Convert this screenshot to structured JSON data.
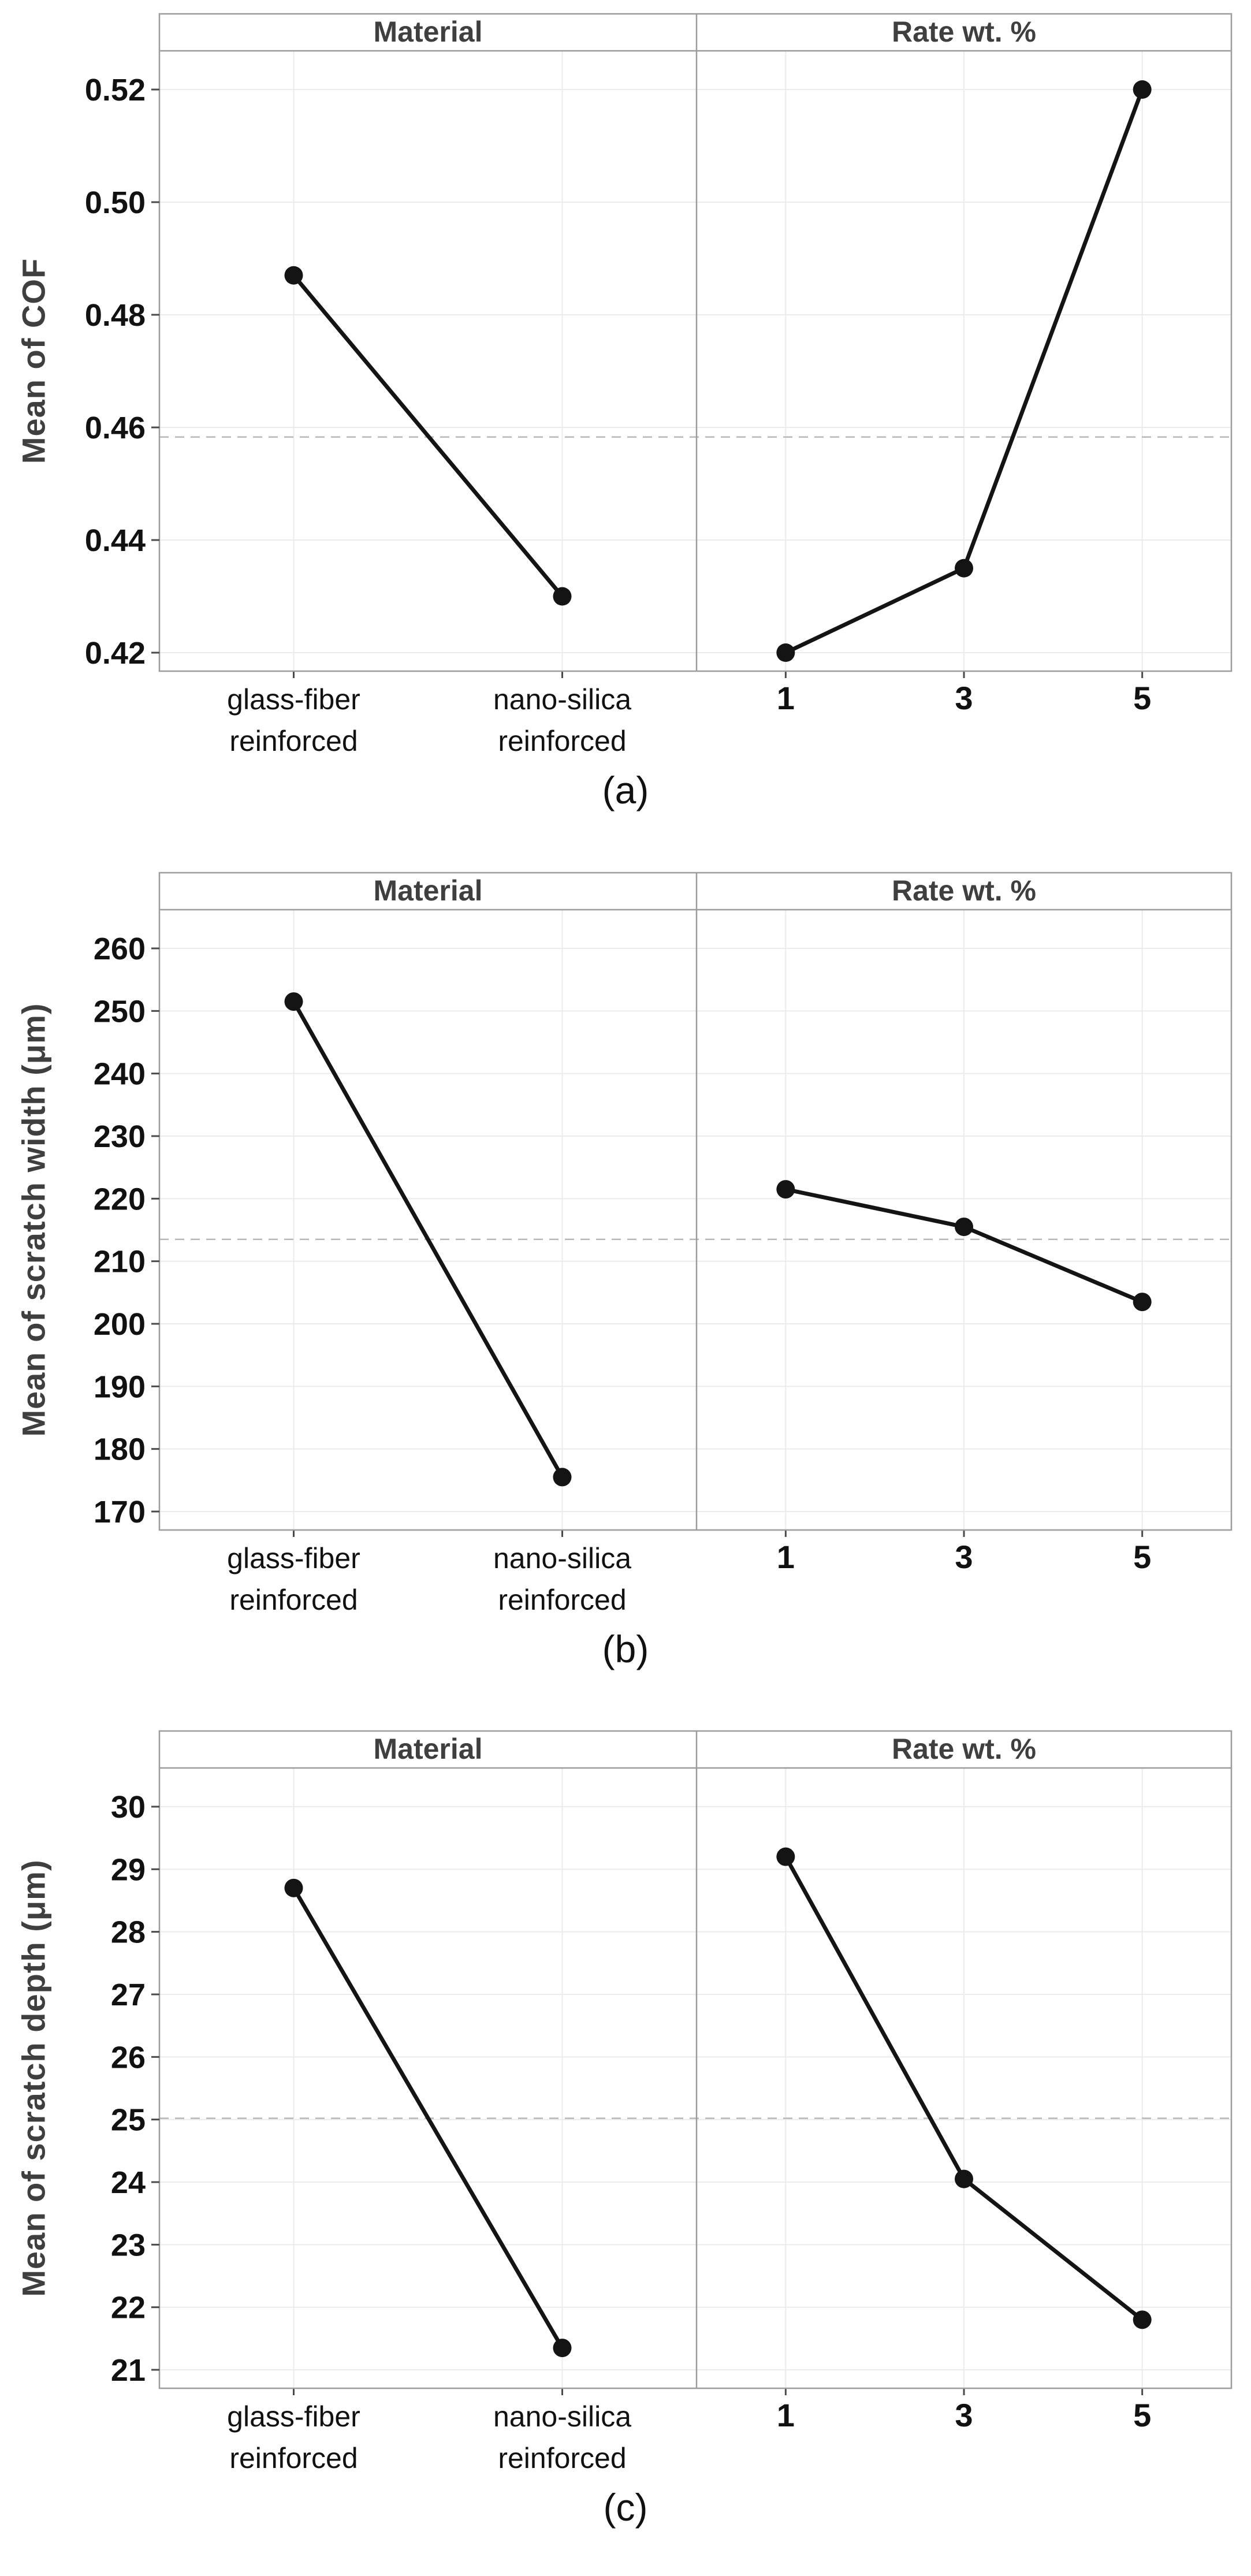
{
  "figure": {
    "background": "#ffffff",
    "captions": [
      "(a)",
      "(b)",
      "(c)"
    ]
  },
  "colors": {
    "series": "#141414",
    "marker": "#141414",
    "grid": "#ebebeb",
    "border": "#9c9c9c",
    "tick": "#4a4a4a",
    "reference_line": "#b8b8b8",
    "header_text": "#3f3f3f",
    "tick_label_text": "#111111"
  },
  "chart_data": [
    {
      "type": "line",
      "caption": "(a)",
      "ylabel": "Mean of COF",
      "panel_titles": [
        "Material",
        "Rate wt. %"
      ],
      "yticks": [
        0.52,
        0.5,
        0.48,
        0.46,
        0.44,
        0.42
      ],
      "ytick_labels": [
        "0.52",
        "0.50",
        "0.48",
        "0.46",
        "0.44",
        "0.42"
      ],
      "ylim": [
        0.4145,
        0.5265
      ],
      "grid": true,
      "reference_mean": 0.4583,
      "panels": [
        {
          "title": "Material",
          "categories": [
            [
              "glass-fiber",
              "reinforced"
            ],
            [
              "nano-silica",
              "reinforced"
            ]
          ],
          "values": [
            0.487,
            0.43
          ]
        },
        {
          "title": "Rate wt. %",
          "categories": [
            [
              "1"
            ],
            [
              "3"
            ],
            [
              "5"
            ]
          ],
          "values": [
            0.42,
            0.435,
            0.52
          ]
        }
      ]
    },
    {
      "type": "line",
      "caption": "(b)",
      "ylabel": "Mean of scratch width (μm)",
      "panel_titles": [
        "Material",
        "Rate wt. %"
      ],
      "yticks": [
        260,
        250,
        240,
        230,
        220,
        210,
        200,
        190,
        180,
        170
      ],
      "ytick_labels": [
        "260",
        "250",
        "240",
        "230",
        "220",
        "210",
        "200",
        "190",
        "180",
        "170"
      ],
      "ylim": [
        167,
        263
      ],
      "grid": true,
      "reference_mean": 213.5,
      "panels": [
        {
          "title": "Material",
          "categories": [
            [
              "glass-fiber",
              "reinforced"
            ],
            [
              "nano-silica",
              "reinforced"
            ]
          ],
          "values": [
            251.5,
            175.5
          ]
        },
        {
          "title": "Rate wt. %",
          "categories": [
            [
              "1"
            ],
            [
              "3"
            ],
            [
              "5"
            ]
          ],
          "values": [
            221.5,
            215.5,
            203.5
          ]
        }
      ]
    },
    {
      "type": "line",
      "caption": "(c)",
      "ylabel": "Mean of scratch depth (μm)",
      "panel_titles": [
        "Material",
        "Rate wt. %"
      ],
      "yticks": [
        30,
        29,
        28,
        27,
        26,
        25,
        24,
        23,
        22,
        21
      ],
      "ytick_labels": [
        "30",
        "29",
        "28",
        "27",
        "26",
        "25",
        "24",
        "23",
        "22",
        "21"
      ],
      "ylim": [
        20.7,
        30.3
      ],
      "grid": true,
      "reference_mean": 25.02,
      "panels": [
        {
          "title": "Material",
          "categories": [
            [
              "glass-fiber",
              "reinforced"
            ],
            [
              "nano-silica",
              "reinforced"
            ]
          ],
          "values": [
            28.7,
            21.35
          ]
        },
        {
          "title": "Rate wt. %",
          "categories": [
            [
              "1"
            ],
            [
              "3"
            ],
            [
              "5"
            ]
          ],
          "values": [
            29.2,
            24.05,
            21.8
          ]
        }
      ]
    }
  ]
}
